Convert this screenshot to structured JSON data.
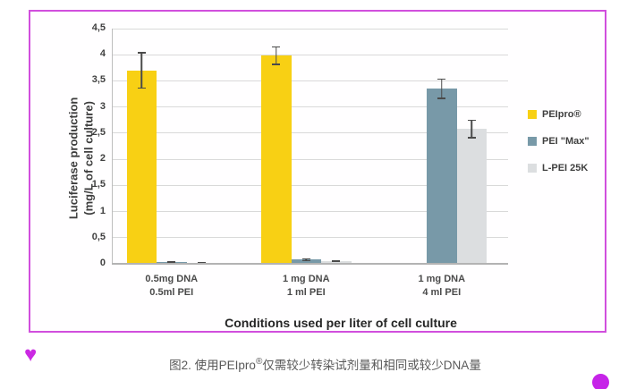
{
  "figure": {
    "border_color": "#d14fdd",
    "caption": {
      "prefix": "图2. 使用PEIpro",
      "sup": "®",
      "suffix": "仅需较少转染试剂量和相同或较少DNA量",
      "color": "#595959"
    },
    "decorations": {
      "heart_glyph": "♥",
      "heart_color": "#cb29e3",
      "dot_color": "#c624e8"
    }
  },
  "chart_data": {
    "type": "bar",
    "title": "",
    "xlabel": "Conditions used per liter of cell culture",
    "ylabel_line1": "Luciferase production",
    "ylabel_line2": "(mg/L of cell culture)",
    "ylim": [
      0,
      4.5
    ],
    "ytick_step": 0.5,
    "yticks": [
      "0",
      "0,5",
      "1",
      "1,5",
      "2",
      "2,5",
      "3",
      "3,5",
      "4",
      "4,5"
    ],
    "decimal_separator": ",",
    "grid": true,
    "legend_position": "right",
    "categories": [
      [
        "0.5mg DNA",
        "0.5ml PEI"
      ],
      [
        "1 mg DNA",
        "1 ml PEI"
      ],
      [
        "1 mg DNA",
        "4 ml PEI"
      ]
    ],
    "series": [
      {
        "name": "PEIpro®",
        "color": "#f8d014",
        "values": [
          3.7,
          3.98,
          null
        ],
        "errors": [
          0.35,
          0.18,
          null
        ]
      },
      {
        "name": "PEI \"Max\"",
        "color": "#7899a8",
        "values": [
          0.03,
          0.08,
          3.35
        ],
        "errors": [
          0.02,
          0.03,
          0.2
        ]
      },
      {
        "name": "L-PEI 25K",
        "color": "#dcdee0",
        "values": [
          0.02,
          0.05,
          2.58
        ],
        "errors": [
          0.015,
          0.02,
          0.18
        ]
      }
    ]
  }
}
